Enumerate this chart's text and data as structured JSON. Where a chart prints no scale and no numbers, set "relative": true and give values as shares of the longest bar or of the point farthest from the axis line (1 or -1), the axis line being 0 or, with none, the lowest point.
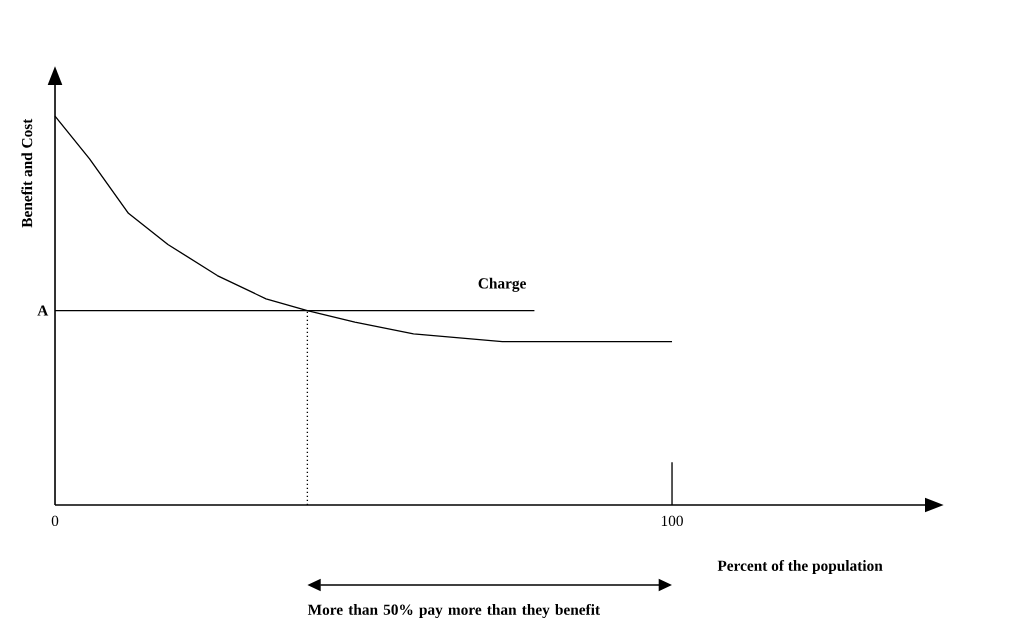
{
  "chart_data": {
    "type": "line",
    "relative": true,
    "xlabel": "Percent of the population",
    "ylabel": "Benefit and Cost",
    "xlim": [
      0,
      141
    ],
    "xticks": [
      0,
      100
    ],
    "series": [
      {
        "color": "#000000",
        "x": [
          0,
          5.6,
          11.9,
          18.3,
          26.3,
          34.2,
          40.9,
          48.6,
          58.1,
          72.5,
          85.2,
          100
        ],
        "values": [
          1,
          0.89,
          0.75,
          0.67,
          0.59,
          0.53,
          0.5,
          0.47,
          0.44,
          0.42,
          0.42,
          0.42
        ]
      },
      {
        "name": "Charge",
        "color": "#000000",
        "x": [
          0,
          77.7
        ],
        "values": [
          0.5,
          0.5
        ]
      },
      {
        "color": "#000000",
        "line_style": "dotted",
        "x": [
          40.9,
          40.9
        ],
        "values": [
          0,
          0.5
        ]
      },
      {
        "color": "#000000",
        "x": [
          100,
          100
        ],
        "values": [
          0,
          0.11
        ]
      }
    ],
    "annotations": [
      {
        "text": "A",
        "x": 0,
        "y": 0.5
      },
      "More than 50% pay more than they benefit"
    ]
  }
}
